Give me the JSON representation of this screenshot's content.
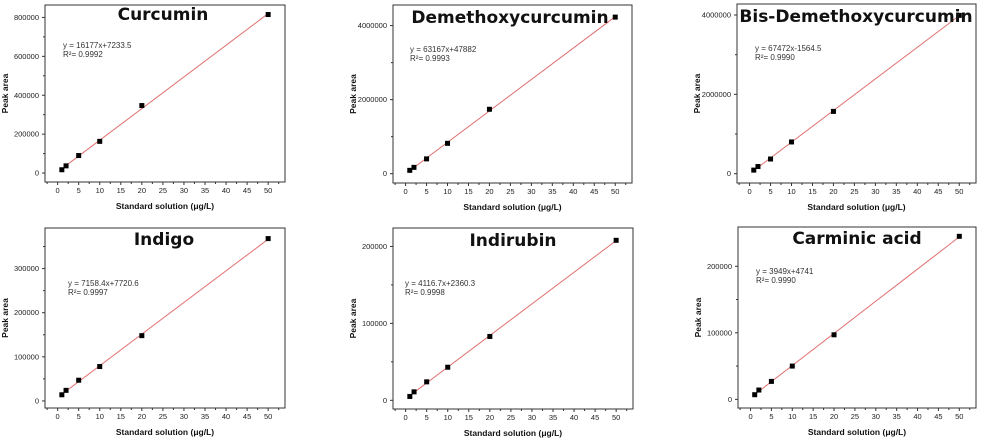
{
  "chart_data": [
    {
      "type": "scatter",
      "title": "Curcumin",
      "xlabel": "Standard solution (μg/L)",
      "ylabel": "Peak area",
      "x": [
        1,
        2,
        5,
        10,
        20,
        50
      ],
      "y": [
        17000,
        37000,
        90000,
        163000,
        347000,
        815000
      ],
      "equation": "y = 16177x+7233.5",
      "r2": "R²= 0.9992",
      "xlim": [
        -3,
        54
      ],
      "ylim": [
        -46000,
        864000
      ],
      "xticks": [
        0,
        5,
        10,
        15,
        20,
        25,
        30,
        35,
        40,
        45,
        50
      ],
      "yticks": [
        0,
        200000,
        400000,
        600000,
        800000
      ],
      "ytick_labels": [
        "0",
        "200000",
        "400000",
        "600000",
        "800000"
      ],
      "yminor": [
        100000,
        300000,
        500000,
        700000
      ],
      "grid": false,
      "legend": "none"
    },
    {
      "type": "scatter",
      "title": "Demethoxycurcumin",
      "xlabel": "Standard solution (μg/L)",
      "ylabel": "Peak area",
      "x": [
        1,
        2,
        5,
        10,
        20,
        50
      ],
      "y": [
        90000,
        170000,
        400000,
        820000,
        1740000,
        4230000
      ],
      "equation": "y = 63167x+47882",
      "r2": "R²= 0.9993",
      "xlim": [
        -3,
        54
      ],
      "ylim": [
        -252000,
        4557000
      ],
      "xticks": [
        0,
        5,
        10,
        15,
        20,
        25,
        30,
        35,
        40,
        45,
        50
      ],
      "yticks": [
        0,
        2000000,
        4000000
      ],
      "ytick_labels": [
        "0",
        "2000000",
        "4000000"
      ],
      "yminor": [
        1000000,
        3000000
      ],
      "grid": false,
      "legend": "none"
    },
    {
      "type": "scatter",
      "title": "Bis-Demethoxycurcumin",
      "xlabel": "Standard solution (μg/L)",
      "ylabel": "Peak area",
      "x": [
        1,
        2,
        5,
        10,
        20,
        50
      ],
      "y": [
        90000,
        180000,
        370000,
        800000,
        1570000,
        3990000
      ],
      "equation": "y = 67472x-1564.5",
      "r2": "R²= 0.9990",
      "xlim": [
        -3,
        54
      ],
      "ylim": [
        -235000,
        4277000
      ],
      "xticks": [
        0,
        5,
        10,
        15,
        20,
        25,
        30,
        35,
        40,
        45,
        50
      ],
      "yticks": [
        0,
        2000000,
        4000000
      ],
      "ytick_labels": [
        "0",
        "2000000",
        "4000000"
      ],
      "yminor": [
        1000000,
        3000000
      ],
      "grid": false,
      "legend": "none"
    },
    {
      "type": "scatter",
      "title": "Indigo",
      "xlabel": "Standard solution (μg/L)",
      "ylabel": "Peak area",
      "x": [
        1,
        2,
        5,
        10,
        20,
        50
      ],
      "y": [
        14000,
        24000,
        47000,
        78000,
        148000,
        368000
      ],
      "equation": "y = 7158.4x+7720.6",
      "r2": "R²= 0.9997",
      "xlim": [
        -3,
        54
      ],
      "ylim": [
        -16000,
        392000
      ],
      "xticks": [
        0,
        5,
        10,
        15,
        20,
        25,
        30,
        35,
        40,
        45,
        50
      ],
      "yticks": [
        0,
        100000,
        200000,
        300000
      ],
      "ytick_labels": [
        "0",
        "100000",
        "200000",
        "300000"
      ],
      "yminor": [
        50000,
        150000,
        250000,
        350000
      ],
      "grid": false,
      "legend": "none"
    },
    {
      "type": "scatter",
      "title": "Indirubin",
      "xlabel": "Standard solution (μg/L)",
      "ylabel": "Peak area",
      "x": [
        1,
        2,
        5,
        10,
        20,
        50
      ],
      "y": [
        5000,
        11000,
        24000,
        43000,
        83000,
        208000
      ],
      "equation": "y = 4116.7x+2360.3",
      "r2": "R²= 0.9998",
      "xlim": [
        -3,
        54
      ],
      "ylim": [
        -11300,
        224000
      ],
      "xticks": [
        0,
        5,
        10,
        15,
        20,
        25,
        30,
        35,
        40,
        45,
        50
      ],
      "yticks": [
        0,
        100000,
        200000
      ],
      "ytick_labels": [
        "0",
        "100000",
        "200000"
      ],
      "yminor": [
        50000,
        150000
      ],
      "grid": false,
      "legend": "none"
    },
    {
      "type": "scatter",
      "title": "Carminic acid",
      "xlabel": "Standard solution (μg/L)",
      "ylabel": "Peak area",
      "x": [
        1,
        2,
        5,
        10,
        20,
        50
      ],
      "y": [
        7000,
        14000,
        27000,
        50000,
        97000,
        245000
      ],
      "equation": "y = 3949x+4741",
      "r2": "R²= 0.9990",
      "xlim": [
        -3,
        54
      ],
      "ylim": [
        -13000,
        259000
      ],
      "xticks": [
        0,
        5,
        10,
        15,
        20,
        25,
        30,
        35,
        40,
        45,
        50
      ],
      "yticks": [
        0,
        100000,
        200000
      ],
      "ytick_labels": [
        "0",
        "100000",
        "200000"
      ],
      "yminor": [
        50000,
        150000
      ],
      "grid": false,
      "legend": "none"
    }
  ],
  "colors": {
    "points": "#000000",
    "fit_line": "#e07070",
    "axes": "#333333"
  }
}
